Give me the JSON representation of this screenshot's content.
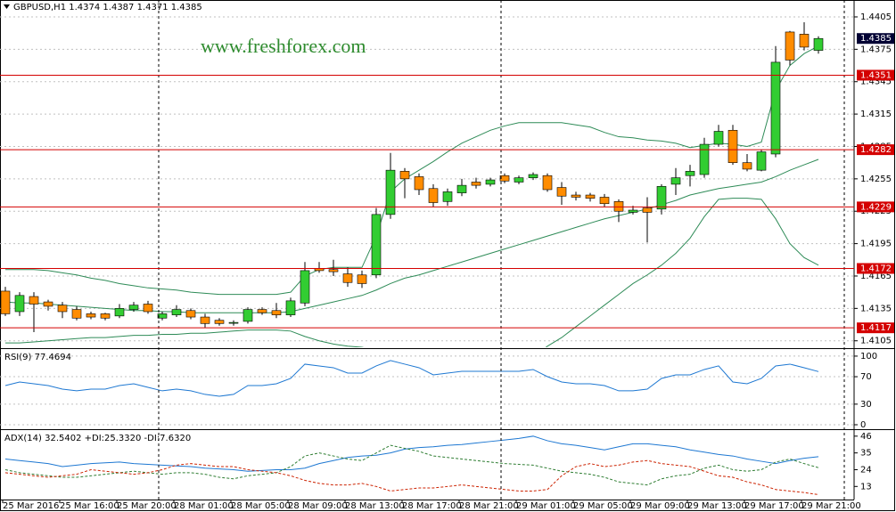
{
  "chart_data": [
    {
      "type": "candlestick",
      "title": "GBPUSD,H1  1.4374 1.4387 1.4371 1.4385",
      "watermark": "www.freshforex.com",
      "categories": [
        "25 Mar 2016",
        null,
        null,
        null,
        "25 Mar 16:00",
        null,
        null,
        null,
        "25 Mar 20:00",
        null,
        null,
        null,
        "28 Mar 01:00",
        null,
        null,
        null,
        "28 Mar 05:00",
        null,
        null,
        null,
        "28 Mar 09:00",
        null,
        null,
        null,
        "28 Mar 13:00",
        null,
        null,
        null,
        "28 Mar 17:00",
        null,
        null,
        null,
        "28 Mar 21:00",
        null,
        null,
        null,
        "29 Mar 01:00",
        null,
        null,
        null,
        "29 Mar 05:00",
        null,
        null,
        null,
        "29 Mar 09:00",
        null,
        null,
        null,
        "29 Mar 13:00",
        null,
        null,
        null,
        "29 Mar 17:00",
        null,
        null,
        null,
        "29 Mar 21:00",
        null
      ],
      "open": [
        1.4151,
        1.4132,
        1.4146,
        1.4141,
        1.4138,
        1.4134,
        1.413,
        1.413,
        1.4128,
        1.4134,
        1.4139,
        1.4126,
        1.4129,
        1.4133,
        1.4127,
        1.4124,
        1.4122,
        1.4123,
        1.4134,
        1.4133,
        1.4129,
        1.414,
        1.4172,
        1.4171,
        1.4167,
        1.4166,
        1.4166,
        1.4222,
        1.4262,
        1.4257,
        1.4246,
        1.4234,
        1.4242,
        1.4252,
        1.425,
        1.4258,
        1.4252,
        1.4256,
        1.4258,
        1.4247,
        1.424,
        1.424,
        1.4238,
        1.4234,
        1.4224,
        1.4228,
        1.4227,
        1.425,
        1.4258,
        1.4259,
        1.4287,
        1.43,
        1.427,
        1.4263,
        1.4278,
        1.4391,
        1.4389,
        1.4374
      ],
      "high": [
        1.4155,
        1.415,
        1.415,
        1.4143,
        1.4141,
        1.4137,
        1.4132,
        1.4131,
        1.4139,
        1.4141,
        1.4142,
        1.4132,
        1.4138,
        1.4135,
        1.413,
        1.4126,
        1.4124,
        1.4136,
        1.4136,
        1.414,
        1.4145,
        1.4178,
        1.4178,
        1.418,
        1.4173,
        1.417,
        1.4228,
        1.4279,
        1.4265,
        1.426,
        1.425,
        1.4246,
        1.4255,
        1.4256,
        1.4256,
        1.426,
        1.4258,
        1.4261,
        1.426,
        1.4252,
        1.4243,
        1.4242,
        1.4241,
        1.4236,
        1.423,
        1.4238,
        1.425,
        1.4265,
        1.4268,
        1.4293,
        1.4305,
        1.4305,
        1.4278,
        1.4282,
        1.4378,
        1.4392,
        1.44,
        1.4387
      ],
      "low": [
        1.4128,
        1.4128,
        1.4113,
        1.4133,
        1.4126,
        1.4124,
        1.4125,
        1.4124,
        1.4126,
        1.4132,
        1.413,
        1.4124,
        1.4127,
        1.4125,
        1.4117,
        1.4119,
        1.4119,
        1.4121,
        1.4129,
        1.4126,
        1.4127,
        1.4137,
        1.4168,
        1.4165,
        1.4155,
        1.4154,
        1.4163,
        1.4218,
        1.4237,
        1.424,
        1.4229,
        1.423,
        1.4239,
        1.4246,
        1.4248,
        1.4251,
        1.425,
        1.4254,
        1.4243,
        1.4231,
        1.4235,
        1.4234,
        1.4229,
        1.4215,
        1.4222,
        1.4196,
        1.4222,
        1.424,
        1.4248,
        1.4256,
        1.4285,
        1.4268,
        1.4262,
        1.4262,
        1.4275,
        1.436,
        1.4374,
        1.4371
      ],
      "close": [
        1.413,
        1.4147,
        1.4139,
        1.4137,
        1.4132,
        1.4126,
        1.4127,
        1.4126,
        1.4135,
        1.4138,
        1.4132,
        1.413,
        1.4134,
        1.4127,
        1.4121,
        1.4121,
        1.4122,
        1.4134,
        1.4131,
        1.4129,
        1.4142,
        1.417,
        1.417,
        1.4169,
        1.4159,
        1.4158,
        1.4222,
        1.4263,
        1.4255,
        1.4245,
        1.4233,
        1.4243,
        1.4249,
        1.4249,
        1.4254,
        1.4253,
        1.4256,
        1.4259,
        1.4245,
        1.4239,
        1.4238,
        1.4237,
        1.4232,
        1.4225,
        1.4226,
        1.4224,
        1.4248,
        1.4256,
        1.4262,
        1.4287,
        1.4299,
        1.427,
        1.4264,
        1.428,
        1.4363,
        1.4365,
        1.4377,
        1.4385
      ],
      "up_color": "#32cd32",
      "down_color": "#ff8c00",
      "bands": [
        {
          "color": "#2e8b57",
          "values": [
            1.4171,
            1.4171,
            1.4171,
            1.417,
            1.4168,
            1.4166,
            1.4163,
            1.4161,
            1.4158,
            1.4156,
            1.4154,
            1.4153,
            1.4152,
            1.415,
            1.4149,
            1.4148,
            1.4148,
            1.4148,
            1.4148,
            1.4148,
            1.415,
            1.4165,
            1.4171,
            1.4173,
            1.4173,
            1.4173,
            1.4202,
            1.4243,
            1.4255,
            1.4263,
            1.4271,
            1.428,
            1.4288,
            1.4294,
            1.43,
            1.4304,
            1.4307,
            1.4307,
            1.4307,
            1.4307,
            1.4305,
            1.4303,
            1.4298,
            1.4294,
            1.4293,
            1.4291,
            1.429,
            1.4288,
            1.4284,
            1.4286,
            1.4288,
            1.4287,
            1.4285,
            1.4289,
            1.4337,
            1.436,
            1.4371,
            1.4378
          ]
        },
        {
          "color": "#2e8b57",
          "values": [
            1.4141,
            1.414,
            1.414,
            1.4139,
            1.4138,
            1.4137,
            1.4136,
            1.4135,
            1.4134,
            1.4133,
            1.4133,
            1.4132,
            1.4132,
            1.4131,
            1.4131,
            1.4131,
            1.4131,
            1.4131,
            1.4131,
            1.4131,
            1.4132,
            1.4135,
            1.4138,
            1.4141,
            1.4144,
            1.4147,
            1.4152,
            1.4158,
            1.4163,
            1.4166,
            1.417,
            1.4174,
            1.4178,
            1.4182,
            1.4186,
            1.419,
            1.4194,
            1.4198,
            1.4202,
            1.4206,
            1.421,
            1.4214,
            1.4218,
            1.4221,
            1.4224,
            1.4227,
            1.4231,
            1.4235,
            1.424,
            1.4243,
            1.4246,
            1.4248,
            1.425,
            1.4252,
            1.4257,
            1.4263,
            1.4268,
            1.4273
          ]
        },
        {
          "color": "#2e8b57",
          "values": [
            1.4103,
            1.4103,
            1.4104,
            1.4105,
            1.4106,
            1.4107,
            1.4108,
            1.4108,
            1.4109,
            1.411,
            1.411,
            1.4111,
            1.4111,
            1.4112,
            1.4112,
            1.4113,
            1.4114,
            1.4115,
            1.4115,
            1.4115,
            1.4114,
            1.4109,
            1.4105,
            1.4102,
            1.41,
            1.4099,
            1.4096,
            1.4073,
            1.4071,
            1.4069,
            1.4069,
            1.4068,
            1.4068,
            1.407,
            1.4072,
            1.4076,
            1.4081,
            1.4089,
            1.41,
            1.4108,
            1.4118,
            1.4128,
            1.4138,
            1.4148,
            1.4158,
            1.4166,
            1.4175,
            1.4186,
            1.42,
            1.422,
            1.4236,
            1.4237,
            1.4237,
            1.4236,
            1.4218,
            1.4195,
            1.4182,
            1.4175
          ]
        }
      ],
      "levels": [
        1.4351,
        1.4282,
        1.4229,
        1.4172,
        1.4117
      ],
      "level_color": "#d40000",
      "last_price": 1.4385,
      "ylim": [
        1.4099,
        1.4419
      ],
      "yticks": [
        1.4405,
        1.4375,
        1.4345,
        1.4315,
        1.4285,
        1.4255,
        1.4225,
        1.4195,
        1.4165,
        1.4135,
        1.4105
      ],
      "grid": true
    },
    {
      "type": "line",
      "title": "RSI(9) 77.4694",
      "series": [
        {
          "color": "#1e78d2",
          "values": [
            57.1,
            62.3,
            59.7,
            57.1,
            51.9,
            49.4,
            51.9,
            51.9,
            57.1,
            59.7,
            54.5,
            49.4,
            51.9,
            49.4,
            44.2,
            41.6,
            44.2,
            57.1,
            57.1,
            59.7,
            67.5,
            88.3,
            85.7,
            83.1,
            75.3,
            75.3,
            85.7,
            93.5,
            88.3,
            83.1,
            72.7,
            75.3,
            77.9,
            77.9,
            77.9,
            77.9,
            77.9,
            80.5,
            70.1,
            62.3,
            59.7,
            59.7,
            57.1,
            49.4,
            49.4,
            51.9,
            67.5,
            72.7,
            72.7,
            80.5,
            85.7,
            62.3,
            59.7,
            67.5,
            85.7,
            88.3,
            83.1,
            77.4694
          ]
        }
      ],
      "ylim": [
        -5.2,
        109
      ],
      "yticks": [
        100,
        70,
        30,
        0
      ],
      "grid": true
    },
    {
      "type": "line",
      "title": "ADX(14) 32.5402 +DI:25.3320 -DI:7.6320",
      "series": [
        {
          "color": "#1e78d2",
          "dash": false,
          "values": [
            31,
            30,
            29,
            28,
            26,
            27,
            28,
            28.5,
            29,
            28,
            27.5,
            27,
            26.5,
            26,
            25,
            24.5,
            24,
            23,
            23.5,
            24,
            24,
            25,
            28,
            30,
            32,
            33,
            33.5,
            35,
            37.5,
            38.5,
            39,
            40,
            40.5,
            41.5,
            42.5,
            43.5,
            44.5,
            46,
            43,
            41,
            40,
            38.5,
            37,
            39,
            41,
            41,
            40,
            39,
            37,
            35.5,
            34,
            33,
            31,
            29.5,
            28,
            30,
            31.5,
            32.5402
          ]
        },
        {
          "color": "#2e7d32",
          "dash": true,
          "values": [
            24,
            22,
            21,
            20,
            19,
            19,
            20,
            21,
            22,
            23,
            22,
            21,
            22,
            22,
            21,
            19,
            18,
            20,
            21,
            22,
            26,
            33,
            35,
            33,
            31,
            30,
            35,
            40,
            38,
            36,
            33,
            32,
            31,
            30,
            29,
            28,
            27.5,
            27,
            25,
            23,
            22,
            21,
            19,
            16,
            15,
            14,
            18,
            20,
            21,
            25,
            27,
            24,
            23,
            24,
            29,
            31,
            28,
            25.332
          ]
        },
        {
          "color": "#cc2200",
          "dash": true,
          "values": [
            22,
            21,
            20,
            19,
            20,
            21,
            24,
            23,
            22,
            21,
            22,
            24,
            27,
            28,
            27,
            26,
            26,
            24,
            23,
            22,
            20,
            17,
            15,
            14,
            14,
            15,
            13,
            10,
            11,
            12,
            12,
            13,
            14,
            13,
            12,
            11,
            10,
            10,
            11,
            20,
            26,
            28,
            26,
            27,
            29,
            30,
            28,
            27,
            26,
            23,
            20,
            19,
            16,
            14,
            11,
            10,
            9,
            7.632
          ]
        }
      ],
      "ylim": [
        5,
        49.4
      ],
      "yticks": [
        46,
        35,
        24,
        13
      ],
      "grid": false
    }
  ]
}
